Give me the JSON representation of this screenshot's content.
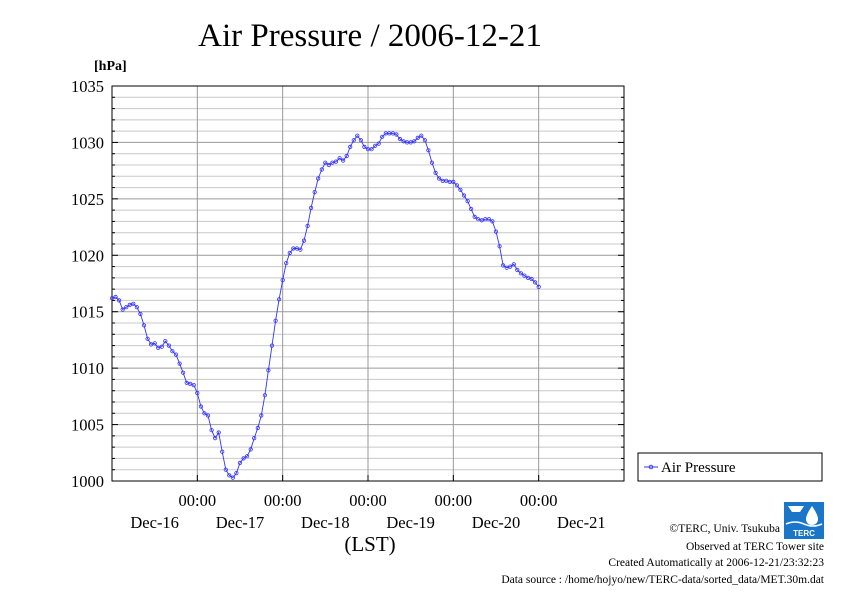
{
  "chart_data": {
    "type": "line",
    "title": "Air Pressure / 2006-12-21",
    "ylabel_unit": "[hPa]",
    "xlabel": "(LST)",
    "ylim": [
      1000,
      1035
    ],
    "yticks": [
      "1000",
      "1005",
      "1010",
      "1015",
      "1020",
      "1025",
      "1030",
      "1035"
    ],
    "xlim": [
      0,
      144
    ],
    "xtick_time_labels": [
      {
        "x": 24,
        "label": "00:00"
      },
      {
        "x": 48,
        "label": "00:00"
      },
      {
        "x": 72,
        "label": "00:00"
      },
      {
        "x": 96,
        "label": "00:00"
      },
      {
        "x": 120,
        "label": "00:00"
      }
    ],
    "xtick_day_labels": [
      {
        "x": 12,
        "label": "Dec-16"
      },
      {
        "x": 36,
        "label": "Dec-17"
      },
      {
        "x": 60,
        "label": "Dec-18"
      },
      {
        "x": 84,
        "label": "Dec-19"
      },
      {
        "x": 108,
        "label": "Dec-20"
      },
      {
        "x": 132,
        "label": "Dec-21"
      }
    ],
    "grid": true,
    "legend_position": "right",
    "series": [
      {
        "name": "Air Pressure",
        "color": "#3333ff",
        "points": [
          [
            0,
            1016.2
          ],
          [
            1,
            1016.3
          ],
          [
            2,
            1016.0
          ],
          [
            3,
            1015.2
          ],
          [
            4,
            1015.4
          ],
          [
            5,
            1015.6
          ],
          [
            6,
            1015.7
          ],
          [
            7,
            1015.4
          ],
          [
            8,
            1014.8
          ],
          [
            9,
            1013.8
          ],
          [
            10,
            1012.6
          ],
          [
            11,
            1012.1
          ],
          [
            12,
            1012.2
          ],
          [
            13,
            1011.8
          ],
          [
            14,
            1011.9
          ],
          [
            15,
            1012.4
          ],
          [
            16,
            1012.0
          ],
          [
            17,
            1011.5
          ],
          [
            18,
            1011.2
          ],
          [
            19,
            1010.4
          ],
          [
            20,
            1009.6
          ],
          [
            21,
            1008.7
          ],
          [
            22,
            1008.6
          ],
          [
            23,
            1008.5
          ],
          [
            24,
            1007.8
          ],
          [
            25,
            1006.6
          ],
          [
            26,
            1006.0
          ],
          [
            27,
            1005.8
          ],
          [
            28,
            1004.5
          ],
          [
            29,
            1003.8
          ],
          [
            30,
            1004.3
          ],
          [
            31,
            1002.6
          ],
          [
            32,
            1001.0
          ],
          [
            33,
            1000.5
          ],
          [
            34,
            1000.3
          ],
          [
            35,
            1000.7
          ],
          [
            36,
            1001.6
          ],
          [
            37,
            1002.0
          ],
          [
            38,
            1002.2
          ],
          [
            39,
            1002.8
          ],
          [
            40,
            1003.8
          ],
          [
            41,
            1004.7
          ],
          [
            42,
            1005.8
          ],
          [
            43,
            1007.6
          ],
          [
            44,
            1009.8
          ],
          [
            45,
            1012.0
          ],
          [
            46,
            1014.2
          ],
          [
            47,
            1016.1
          ],
          [
            48,
            1017.8
          ],
          [
            49,
            1019.3
          ],
          [
            50,
            1020.2
          ],
          [
            51,
            1020.6
          ],
          [
            52,
            1020.6
          ],
          [
            53,
            1020.5
          ],
          [
            54,
            1021.3
          ],
          [
            55,
            1022.6
          ],
          [
            56,
            1024.2
          ],
          [
            57,
            1025.6
          ],
          [
            58,
            1026.8
          ],
          [
            59,
            1027.6
          ],
          [
            60,
            1028.2
          ],
          [
            61,
            1028.0
          ],
          [
            62,
            1028.2
          ],
          [
            63,
            1028.3
          ],
          [
            64,
            1028.6
          ],
          [
            65,
            1028.4
          ],
          [
            66,
            1028.8
          ],
          [
            67,
            1029.6
          ],
          [
            68,
            1030.2
          ],
          [
            69,
            1030.6
          ],
          [
            70,
            1030.2
          ],
          [
            71,
            1029.6
          ],
          [
            72,
            1029.4
          ],
          [
            73,
            1029.4
          ],
          [
            74,
            1029.7
          ],
          [
            75,
            1029.9
          ],
          [
            76,
            1030.5
          ],
          [
            77,
            1030.8
          ],
          [
            78,
            1030.8
          ],
          [
            79,
            1030.8
          ],
          [
            80,
            1030.7
          ],
          [
            81,
            1030.3
          ],
          [
            82,
            1030.1
          ],
          [
            83,
            1030.0
          ],
          [
            84,
            1030.0
          ],
          [
            85,
            1030.1
          ],
          [
            86,
            1030.4
          ],
          [
            87,
            1030.6
          ],
          [
            88,
            1030.2
          ],
          [
            89,
            1029.3
          ],
          [
            90,
            1028.2
          ],
          [
            91,
            1027.3
          ],
          [
            92,
            1026.8
          ],
          [
            93,
            1026.6
          ],
          [
            94,
            1026.6
          ],
          [
            95,
            1026.5
          ],
          [
            96,
            1026.5
          ],
          [
            97,
            1026.2
          ],
          [
            98,
            1025.8
          ],
          [
            99,
            1025.3
          ],
          [
            100,
            1024.8
          ],
          [
            101,
            1024.1
          ],
          [
            102,
            1023.4
          ],
          [
            103,
            1023.2
          ],
          [
            104,
            1023.1
          ],
          [
            105,
            1023.2
          ],
          [
            106,
            1023.2
          ],
          [
            107,
            1023.0
          ],
          [
            108,
            1022.1
          ],
          [
            109,
            1020.8
          ],
          [
            110,
            1019.1
          ],
          [
            111,
            1018.9
          ],
          [
            112,
            1019.0
          ],
          [
            113,
            1019.2
          ],
          [
            114,
            1018.7
          ],
          [
            115,
            1018.4
          ],
          [
            116,
            1018.2
          ],
          [
            117,
            1018.0
          ],
          [
            118,
            1017.9
          ],
          [
            119,
            1017.6
          ],
          [
            120,
            1017.2
          ]
        ]
      }
    ]
  },
  "footer": {
    "copyright": "©TERC, Univ. Tsukuba",
    "site": "Observed at TERC Tower site",
    "created": "Created Automatically at 2006-12-21/23:32:23",
    "source": "Data source : /home/hojyo/new/TERC-data/sorted_data/MET.30m.dat"
  },
  "logo_text": "TERC"
}
